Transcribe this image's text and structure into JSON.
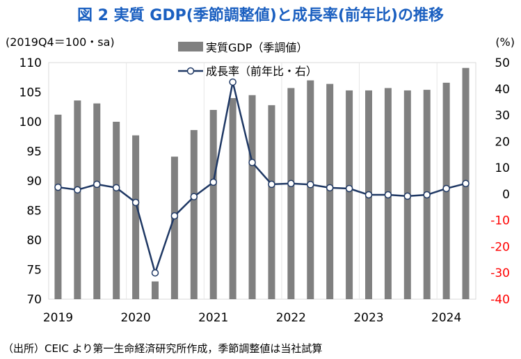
{
  "title": "図 2  実質 GDP(季節調整値)と成長率(前年比)の推移",
  "footnote": "（出所）CEIC より第一生命経済研究所作成，季節調整値は当社試算",
  "chart_data": {
    "type": "bar+line",
    "left_unit": "(2019Q4＝100・sa)",
    "right_unit": "(%)",
    "ylim_left": [
      70,
      110
    ],
    "yticks_left": [
      70,
      75,
      80,
      85,
      90,
      95,
      100,
      105,
      110
    ],
    "ylim_right": [
      -40,
      50
    ],
    "yticks_right": [
      -40,
      -30,
      -20,
      -10,
      0,
      10,
      20,
      30,
      40,
      50
    ],
    "year_labels": [
      "2019",
      "2020",
      "2021",
      "2022",
      "2023",
      "2024"
    ],
    "categories": [
      "2019Q1",
      "2019Q2",
      "2019Q3",
      "2019Q4",
      "2020Q1",
      "2020Q2",
      "2020Q3",
      "2020Q4",
      "2021Q1",
      "2021Q2",
      "2021Q3",
      "2021Q4",
      "2022Q1",
      "2022Q2",
      "2022Q3",
      "2022Q4",
      "2023Q1",
      "2023Q2",
      "2023Q3",
      "2023Q4",
      "2024Q1",
      "2024Q2"
    ],
    "series": [
      {
        "name": "実質GDP（季調値）",
        "type": "bar",
        "axis": "left",
        "color": "#808080",
        "values": [
          101.2,
          103.6,
          103.1,
          100.0,
          97.7,
          73.0,
          94.1,
          98.6,
          102.0,
          104.0,
          104.5,
          102.8,
          105.7,
          107.0,
          106.4,
          105.3,
          105.3,
          105.7,
          105.3,
          105.4,
          106.6,
          109.1
        ]
      },
      {
        "name": "成長率（前年比・右）",
        "type": "line",
        "axis": "right",
        "color": "#1f3864",
        "values": [
          2.6,
          1.6,
          3.7,
          2.4,
          -3.2,
          -30.0,
          -8.3,
          -1.0,
          4.5,
          42.6,
          12.0,
          3.7,
          4.0,
          3.6,
          2.4,
          2.1,
          -0.3,
          -0.3,
          -0.8,
          -0.3,
          2.1,
          4.0
        ]
      }
    ],
    "negative_tick_color": "#ff0000"
  }
}
